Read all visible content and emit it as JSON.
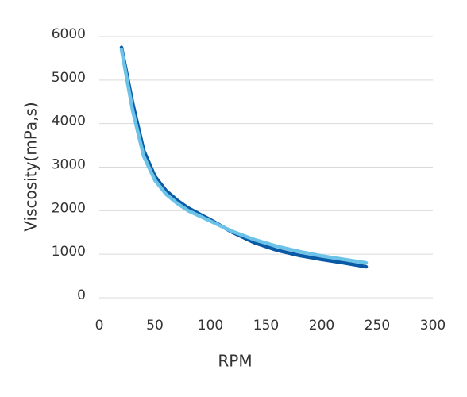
{
  "chart_data": {
    "type": "line",
    "x_label": "RPM",
    "y_label": "Viscosity(mPa,s)",
    "x": [
      20,
      30,
      40,
      50,
      60,
      70,
      80,
      100,
      120,
      140,
      160,
      180,
      200,
      220,
      240
    ],
    "series": [
      {
        "color": "#0b5aa6",
        "values": [
          5750,
          4470,
          3380,
          2790,
          2460,
          2240,
          2060,
          1790,
          1500,
          1260,
          1090,
          970,
          880,
          800,
          710
        ]
      },
      {
        "color": "#6cc3e8",
        "values": [
          5700,
          4300,
          3250,
          2700,
          2380,
          2170,
          2000,
          1760,
          1520,
          1330,
          1180,
          1060,
          960,
          880,
          800
        ]
      }
    ],
    "xlim": [
      0,
      300
    ],
    "xticks": [
      0,
      50,
      100,
      150,
      200,
      250,
      300
    ],
    "ylim": [
      0,
      6000
    ],
    "yticks": [
      0,
      1000,
      2000,
      3000,
      4000,
      5000,
      6000
    ],
    "grid": true
  }
}
